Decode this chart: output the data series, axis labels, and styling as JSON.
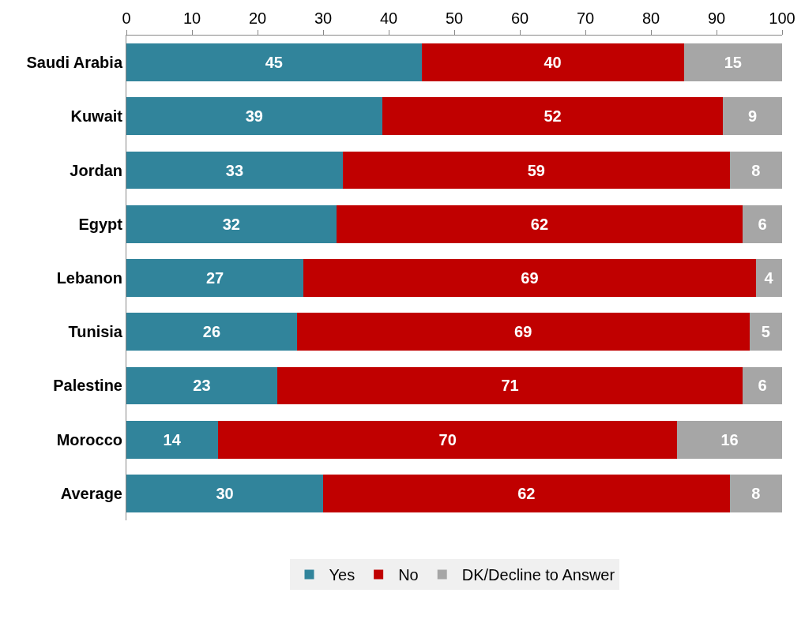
{
  "chart_data": {
    "type": "bar",
    "orientation": "horizontal",
    "stacked": true,
    "data_labels": true,
    "categories": [
      "Saudi Arabia",
      "Kuwait",
      "Jordan",
      "Egypt",
      "Lebanon",
      "Tunisia",
      "Palestine",
      "Morocco",
      "Average"
    ],
    "series": [
      {
        "name": "Yes",
        "color": "#31849b",
        "values": [
          45,
          39,
          33,
          32,
          27,
          26,
          23,
          14,
          30
        ]
      },
      {
        "name": "No",
        "color": "#c00000",
        "values": [
          40,
          52,
          59,
          62,
          69,
          69,
          71,
          70,
          62
        ]
      },
      {
        "name": "DK/Decline to Answer",
        "color": "#a6a6a6",
        "values": [
          15,
          9,
          8,
          6,
          4,
          5,
          6,
          16,
          8
        ]
      }
    ],
    "xlim": [
      0,
      100
    ],
    "xticks": [
      0,
      10,
      20,
      30,
      40,
      50,
      60,
      70,
      80,
      90,
      100
    ],
    "legend": "bottom"
  }
}
